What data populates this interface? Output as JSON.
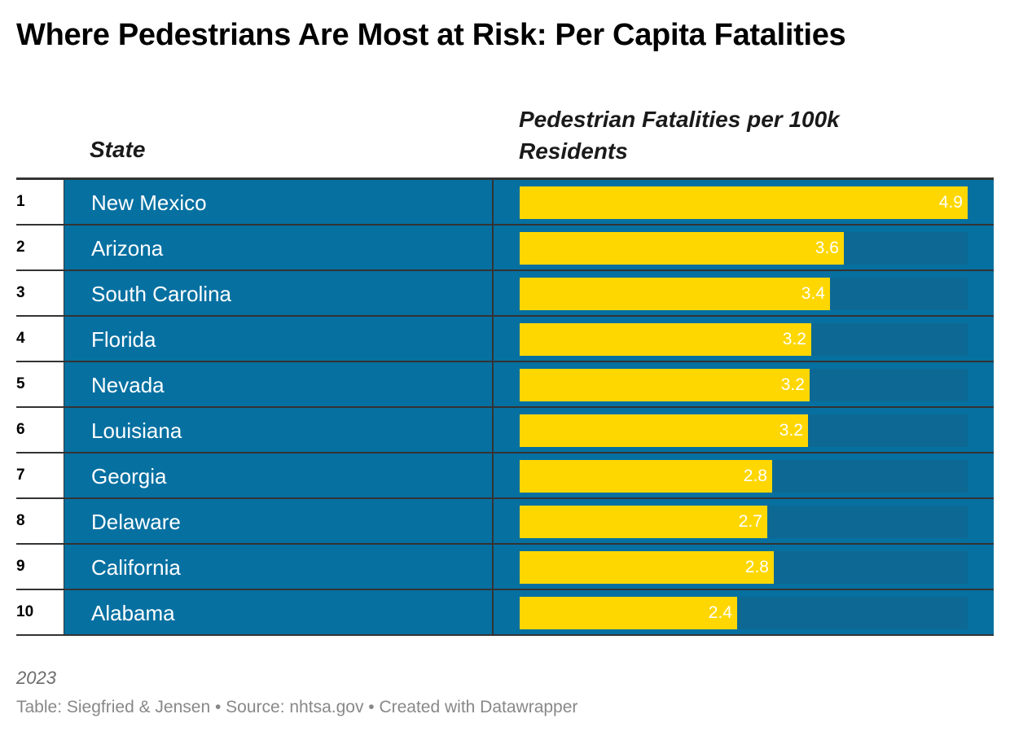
{
  "title": "Where Pedestrians Are Most at Risk: Per Capita Fatalities",
  "columns": {
    "state": "State",
    "value": "Pedestrian Fatalities per 100k Residents"
  },
  "note": "2023",
  "footer": "Table: Siegfried & Jensen • Source: nhtsa.gov • Created with Datawrapper",
  "colors": {
    "row_background": "#0670a1",
    "bar_track": "#0d6993",
    "bar_fill": "#ffd700",
    "text_on_dark": "#ffffff"
  },
  "chart_data": {
    "type": "table",
    "title": "Where Pedestrians Are Most at Risk: Per Capita Fatalities",
    "columns": [
      "State",
      "Pedestrian Fatalities per 100k Residents"
    ],
    "xlim": [
      0,
      4.9
    ],
    "rows": [
      {
        "rank": "1",
        "state": "New Mexico",
        "value": 4.9,
        "label": "4.9"
      },
      {
        "rank": "2",
        "state": "Arizona",
        "value": 3.55,
        "label": "3.6"
      },
      {
        "rank": "3",
        "state": "South Carolina",
        "value": 3.39,
        "label": "3.4"
      },
      {
        "rank": "4",
        "state": "Florida",
        "value": 3.19,
        "label": "3.2"
      },
      {
        "rank": "5",
        "state": "Nevada",
        "value": 3.17,
        "label": "3.2"
      },
      {
        "rank": "6",
        "state": "Louisiana",
        "value": 3.15,
        "label": "3.2"
      },
      {
        "rank": "7",
        "state": "Georgia",
        "value": 2.76,
        "label": "2.8"
      },
      {
        "rank": "8",
        "state": "Delaware",
        "value": 2.71,
        "label": "2.7"
      },
      {
        "rank": "9",
        "state": "California",
        "value": 2.78,
        "label": "2.8"
      },
      {
        "rank": "10",
        "state": "Alabama",
        "value": 2.38,
        "label": "2.4"
      }
    ]
  }
}
